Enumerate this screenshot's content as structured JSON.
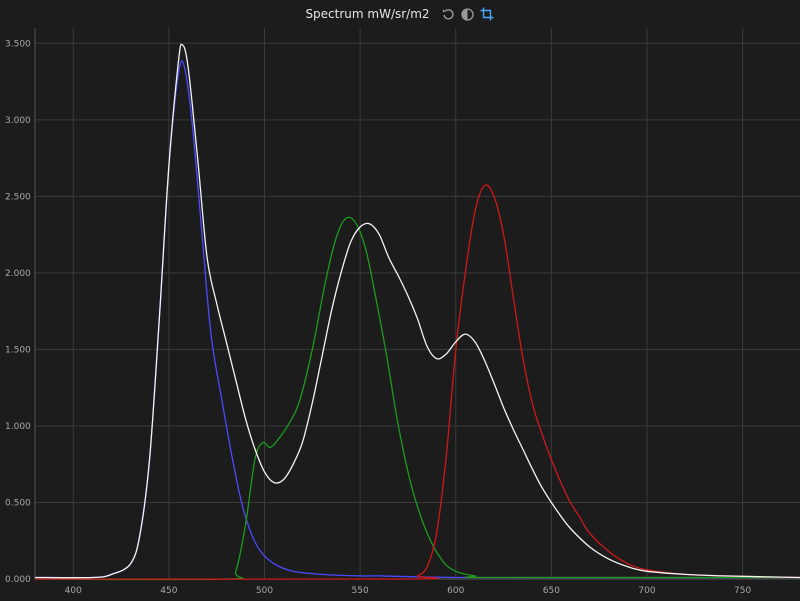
{
  "title": "Spectrum mW/sr/m2",
  "icons": [
    "reset-icon",
    "contrast-icon",
    "crop-icon"
  ],
  "colors": {
    "background": "#1c1c1c",
    "grid": "#3a3a3a",
    "blue": "#4a4aff",
    "green": "#1e9a1e",
    "red": "#d01818",
    "white": "#f4f4f4",
    "icon_active": "#4aa8ff"
  },
  "chart_data": {
    "type": "line",
    "title": "Spectrum mW/sr/m2",
    "xlabel": "",
    "ylabel": "",
    "xlim": [
      380,
      780
    ],
    "ylim": [
      0,
      3.6
    ],
    "grid": true,
    "x_ticks": [
      400,
      450,
      500,
      550,
      600,
      650,
      700,
      750
    ],
    "x_tick_labels": [
      "400",
      "450",
      "500",
      "550",
      "600",
      "650",
      "700",
      "750"
    ],
    "y_ticks": [
      0,
      0.5,
      1.0,
      1.5,
      2.0,
      2.5,
      3.0,
      3.5
    ],
    "y_tick_labels": [
      "0.000",
      "0.500",
      "1.000",
      "1.500",
      "2.000",
      "2.500",
      "3.000",
      "3.500"
    ],
    "series": [
      {
        "color": "#4a4aff",
        "points": [
          [
            380,
            0.01
          ],
          [
            410,
            0.01
          ],
          [
            420,
            0.03
          ],
          [
            430,
            0.1
          ],
          [
            435,
            0.3
          ],
          [
            440,
            0.8
          ],
          [
            445,
            1.7
          ],
          [
            450,
            2.7
          ],
          [
            455,
            3.3
          ],
          [
            458,
            3.35
          ],
          [
            462,
            3.0
          ],
          [
            467,
            2.3
          ],
          [
            472,
            1.6
          ],
          [
            478,
            1.15
          ],
          [
            483,
            0.8
          ],
          [
            488,
            0.5
          ],
          [
            493,
            0.3
          ],
          [
            498,
            0.18
          ],
          [
            505,
            0.1
          ],
          [
            515,
            0.05
          ],
          [
            530,
            0.03
          ],
          [
            550,
            0.02
          ],
          [
            560,
            0.02
          ],
          [
            600,
            0.01
          ],
          [
            700,
            0.01
          ],
          [
            780,
            0.01
          ]
        ]
      },
      {
        "color": "#1e9a1e",
        "points": [
          [
            380,
            0.0
          ],
          [
            480,
            0.0
          ],
          [
            485,
            0.05
          ],
          [
            490,
            0.35
          ],
          [
            495,
            0.78
          ],
          [
            499,
            0.89
          ],
          [
            503,
            0.86
          ],
          [
            507,
            0.91
          ],
          [
            512,
            1.0
          ],
          [
            518,
            1.15
          ],
          [
            525,
            1.5
          ],
          [
            532,
            1.95
          ],
          [
            538,
            2.25
          ],
          [
            543,
            2.36
          ],
          [
            548,
            2.32
          ],
          [
            553,
            2.15
          ],
          [
            558,
            1.85
          ],
          [
            564,
            1.45
          ],
          [
            570,
            1.0
          ],
          [
            577,
            0.6
          ],
          [
            585,
            0.3
          ],
          [
            593,
            0.12
          ],
          [
            600,
            0.05
          ],
          [
            610,
            0.02
          ],
          [
            620,
            0.01
          ],
          [
            780,
            0.01
          ]
        ]
      },
      {
        "color": "#d01818",
        "points": [
          [
            380,
            0.0
          ],
          [
            575,
            0.0
          ],
          [
            580,
            0.02
          ],
          [
            585,
            0.08
          ],
          [
            590,
            0.3
          ],
          [
            595,
            0.8
          ],
          [
            600,
            1.5
          ],
          [
            605,
            2.0
          ],
          [
            610,
            2.4
          ],
          [
            615,
            2.57
          ],
          [
            620,
            2.5
          ],
          [
            625,
            2.25
          ],
          [
            630,
            1.85
          ],
          [
            635,
            1.45
          ],
          [
            640,
            1.15
          ],
          [
            645,
            0.95
          ],
          [
            650,
            0.78
          ],
          [
            655,
            0.63
          ],
          [
            660,
            0.5
          ],
          [
            665,
            0.4
          ],
          [
            670,
            0.3
          ],
          [
            680,
            0.18
          ],
          [
            690,
            0.1
          ],
          [
            700,
            0.06
          ],
          [
            720,
            0.03
          ],
          [
            740,
            0.02
          ],
          [
            780,
            0.01
          ]
        ]
      },
      {
        "color": "#f4f4f4",
        "points": [
          [
            380,
            0.01
          ],
          [
            410,
            0.01
          ],
          [
            420,
            0.03
          ],
          [
            430,
            0.1
          ],
          [
            435,
            0.3
          ],
          [
            440,
            0.8
          ],
          [
            445,
            1.7
          ],
          [
            450,
            2.7
          ],
          [
            455,
            3.38
          ],
          [
            457,
            3.49
          ],
          [
            460,
            3.35
          ],
          [
            465,
            2.75
          ],
          [
            470,
            2.1
          ],
          [
            475,
            1.8
          ],
          [
            480,
            1.55
          ],
          [
            485,
            1.3
          ],
          [
            490,
            1.05
          ],
          [
            495,
            0.85
          ],
          [
            500,
            0.7
          ],
          [
            505,
            0.63
          ],
          [
            510,
            0.65
          ],
          [
            515,
            0.75
          ],
          [
            520,
            0.9
          ],
          [
            525,
            1.15
          ],
          [
            530,
            1.45
          ],
          [
            535,
            1.75
          ],
          [
            540,
            2.0
          ],
          [
            545,
            2.2
          ],
          [
            550,
            2.3
          ],
          [
            555,
            2.32
          ],
          [
            560,
            2.25
          ],
          [
            565,
            2.1
          ],
          [
            570,
            1.98
          ],
          [
            575,
            1.85
          ],
          [
            580,
            1.7
          ],
          [
            585,
            1.52
          ],
          [
            590,
            1.44
          ],
          [
            595,
            1.47
          ],
          [
            600,
            1.55
          ],
          [
            605,
            1.6
          ],
          [
            610,
            1.55
          ],
          [
            615,
            1.43
          ],
          [
            620,
            1.28
          ],
          [
            625,
            1.12
          ],
          [
            630,
            0.98
          ],
          [
            635,
            0.85
          ],
          [
            640,
            0.72
          ],
          [
            645,
            0.6
          ],
          [
            650,
            0.5
          ],
          [
            655,
            0.41
          ],
          [
            660,
            0.33
          ],
          [
            670,
            0.21
          ],
          [
            680,
            0.13
          ],
          [
            690,
            0.08
          ],
          [
            700,
            0.05
          ],
          [
            720,
            0.03
          ],
          [
            740,
            0.02
          ],
          [
            780,
            0.01
          ]
        ]
      }
    ]
  }
}
